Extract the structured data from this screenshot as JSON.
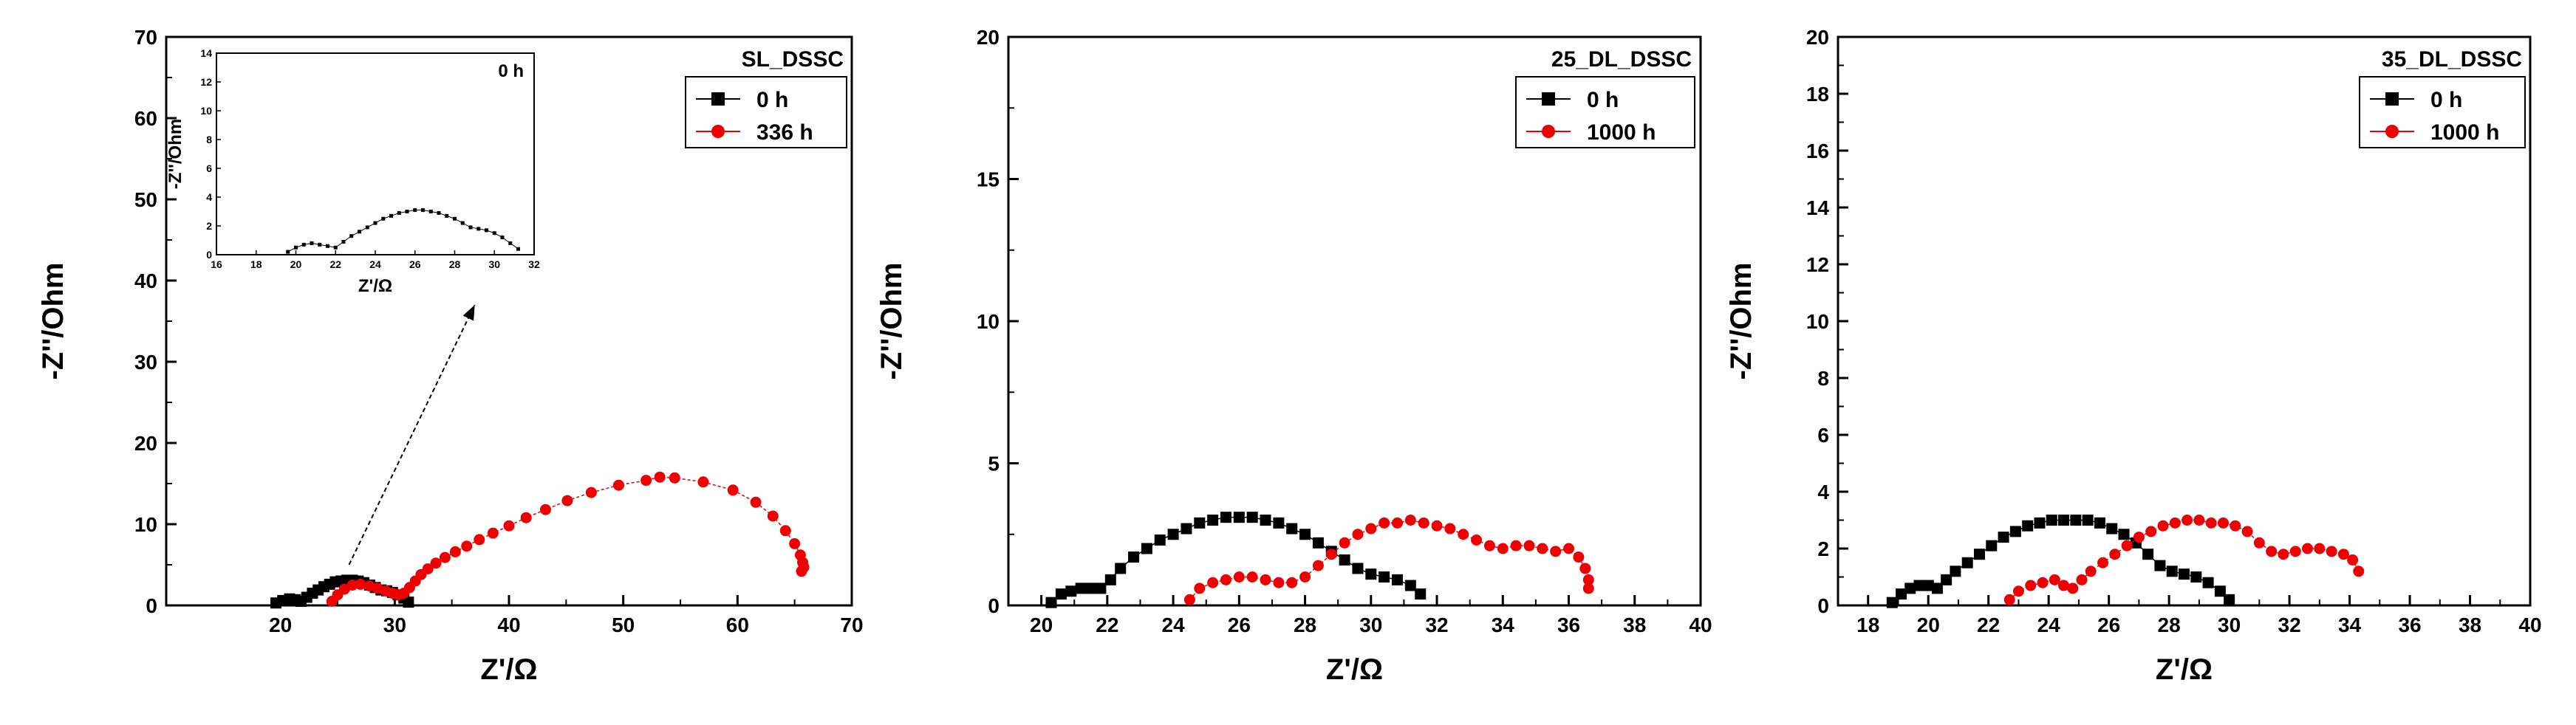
{
  "chart_data": [
    {
      "type": "scatter",
      "title": "SL_DSSC",
      "xlabel": "Z'/Ω",
      "ylabel": "-Z''/Ohm",
      "xlim": [
        10,
        70
      ],
      "ylim": [
        0,
        70
      ],
      "xticks": [
        20,
        30,
        40,
        50,
        60,
        70
      ],
      "yticks": [
        0,
        10,
        20,
        30,
        40,
        50,
        60,
        70
      ],
      "legend_position": "top-right",
      "grid": false,
      "series": [
        {
          "name": "0 h",
          "color": "#000000",
          "marker": "square",
          "x": [
            19.6,
            20.2,
            20.8,
            21.3,
            21.8,
            22.3,
            22.8,
            23.3,
            23.8,
            24.3,
            24.8,
            25.3,
            25.8,
            26.3,
            26.8,
            27.3,
            27.8,
            28.3,
            28.8,
            29.3,
            29.8,
            30.3,
            30.8,
            31.2
          ],
          "y": [
            0.3,
            0.6,
            0.8,
            0.7,
            0.5,
            1.0,
            1.5,
            1.9,
            2.3,
            2.6,
            2.9,
            3.0,
            3.1,
            3.1,
            3.0,
            2.8,
            2.5,
            2.2,
            1.9,
            1.8,
            1.6,
            1.3,
            0.9,
            0.4
          ]
        },
        {
          "name": "336 h",
          "color": "#ee0000",
          "marker": "circle",
          "x": [
            24.5,
            25.0,
            25.6,
            26.3,
            27.0,
            27.8,
            28.5,
            29.2,
            29.8,
            30.3,
            30.8,
            31.3,
            31.8,
            32.3,
            32.9,
            33.6,
            34.4,
            35.3,
            36.3,
            37.4,
            38.6,
            40.0,
            41.5,
            43.2,
            45.1,
            47.2,
            49.6,
            52.0,
            53.2,
            54.5,
            57.0,
            59.6,
            61.6,
            63.1,
            64.2,
            65.0,
            65.5,
            65.7,
            65.8,
            65.6
          ],
          "y": [
            0.5,
            1.3,
            2.0,
            2.5,
            2.6,
            2.4,
            2.1,
            1.8,
            1.5,
            1.3,
            1.5,
            2.2,
            3.0,
            3.8,
            4.5,
            5.2,
            5.9,
            6.6,
            7.3,
            8.1,
            8.9,
            9.8,
            10.8,
            11.8,
            12.9,
            13.9,
            14.8,
            15.4,
            15.8,
            15.7,
            15.2,
            14.2,
            12.7,
            11.0,
            9.2,
            7.6,
            6.2,
            5.3,
            4.7,
            4.2
          ]
        }
      ],
      "annotations": [
        {
          "type": "arrow",
          "from": [
            26,
            5
          ],
          "to": [
            37,
            37
          ]
        }
      ],
      "inset": {
        "title": "0 h",
        "xlabel": "Z'/Ω",
        "ylabel": "-Z''/Ohm",
        "xlim": [
          16,
          32
        ],
        "ylim": [
          0,
          14
        ],
        "xticks": [
          16,
          18,
          20,
          22,
          24,
          26,
          28,
          30,
          32
        ],
        "yticks": [
          0,
          2,
          4,
          6,
          8,
          10,
          12,
          14
        ],
        "series": [
          {
            "name": "0 h",
            "color": "#000000",
            "x": [
              19.6,
              20.0,
              20.4,
              20.8,
              21.2,
              21.6,
              22.0,
              22.4,
              22.8,
              23.2,
              23.6,
              24.0,
              24.4,
              24.8,
              25.2,
              25.6,
              26.0,
              26.4,
              26.8,
              27.2,
              27.6,
              28.0,
              28.4,
              28.8,
              29.2,
              29.6,
              30.0,
              30.4,
              30.8,
              31.2
            ],
            "y": [
              0.2,
              0.5,
              0.7,
              0.8,
              0.7,
              0.6,
              0.5,
              0.9,
              1.3,
              1.6,
              1.9,
              2.2,
              2.5,
              2.7,
              2.9,
              3.0,
              3.1,
              3.1,
              3.0,
              2.9,
              2.7,
              2.5,
              2.2,
              1.9,
              1.8,
              1.7,
              1.5,
              1.2,
              0.8,
              0.4
            ]
          }
        ]
      }
    },
    {
      "type": "scatter",
      "title": "25_DL_DSSC",
      "xlabel": "Z'/Ω",
      "ylabel": "-Z''/Ohm",
      "xlim": [
        19,
        40
      ],
      "ylim": [
        0,
        20
      ],
      "xticks": [
        20,
        22,
        24,
        26,
        28,
        30,
        32,
        34,
        36,
        38,
        40
      ],
      "yticks": [
        0,
        5,
        10,
        15,
        20
      ],
      "legend_position": "top-right",
      "grid": false,
      "series": [
        {
          "name": "0 h",
          "color": "#000000",
          "marker": "square",
          "x": [
            20.3,
            20.6,
            20.9,
            21.2,
            21.5,
            21.8,
            22.1,
            22.4,
            22.8,
            23.2,
            23.6,
            24.0,
            24.4,
            24.8,
            25.2,
            25.6,
            26.0,
            26.4,
            26.8,
            27.2,
            27.6,
            28.0,
            28.4,
            28.8,
            29.2,
            29.6,
            30.0,
            30.4,
            30.8,
            31.2,
            31.5
          ],
          "y": [
            0.1,
            0.4,
            0.5,
            0.6,
            0.6,
            0.6,
            0.9,
            1.3,
            1.7,
            2.0,
            2.3,
            2.5,
            2.7,
            2.9,
            3.0,
            3.1,
            3.1,
            3.1,
            3.0,
            2.9,
            2.7,
            2.5,
            2.2,
            1.9,
            1.6,
            1.3,
            1.1,
            1.0,
            0.9,
            0.7,
            0.4
          ]
        },
        {
          "name": "1000 h",
          "color": "#ee0000",
          "marker": "circle",
          "x": [
            24.5,
            24.8,
            25.2,
            25.6,
            26.0,
            26.4,
            26.8,
            27.2,
            27.6,
            28.0,
            28.4,
            28.8,
            29.2,
            29.6,
            30.0,
            30.4,
            30.8,
            31.2,
            31.6,
            32.0,
            32.4,
            32.8,
            33.2,
            33.6,
            34.0,
            34.4,
            34.8,
            35.2,
            35.6,
            36.0,
            36.3,
            36.5,
            36.6,
            36.6
          ],
          "y": [
            0.2,
            0.6,
            0.8,
            0.9,
            1.0,
            1.0,
            0.9,
            0.8,
            0.8,
            1.0,
            1.4,
            1.8,
            2.2,
            2.5,
            2.7,
            2.9,
            2.9,
            3.0,
            2.9,
            2.8,
            2.7,
            2.5,
            2.3,
            2.1,
            2.0,
            2.1,
            2.1,
            2.0,
            1.9,
            2.0,
            1.7,
            1.3,
            0.9,
            0.6
          ]
        }
      ]
    },
    {
      "type": "scatter",
      "title": "35_DL_DSSC",
      "xlabel": "Z'/Ω",
      "ylabel": "-Z''/Ohm",
      "xlim": [
        17,
        40
      ],
      "ylim": [
        0,
        20
      ],
      "xticks": [
        18,
        20,
        22,
        24,
        26,
        28,
        30,
        32,
        34,
        36,
        38,
        40
      ],
      "yticks": [
        0,
        2,
        4,
        6,
        8,
        10,
        12,
        14,
        16,
        18,
        20
      ],
      "legend_position": "top-right",
      "grid": false,
      "series": [
        {
          "name": "0 h",
          "color": "#000000",
          "marker": "square",
          "x": [
            18.8,
            19.1,
            19.4,
            19.7,
            20.0,
            20.3,
            20.6,
            20.9,
            21.3,
            21.7,
            22.1,
            22.5,
            22.9,
            23.3,
            23.7,
            24.1,
            24.5,
            24.9,
            25.3,
            25.7,
            26.1,
            26.5,
            26.9,
            27.3,
            27.7,
            28.1,
            28.5,
            28.9,
            29.3,
            29.7,
            30.0
          ],
          "y": [
            0.1,
            0.4,
            0.6,
            0.7,
            0.7,
            0.6,
            0.9,
            1.2,
            1.5,
            1.8,
            2.1,
            2.4,
            2.6,
            2.8,
            2.9,
            3.0,
            3.0,
            3.0,
            3.0,
            2.9,
            2.7,
            2.5,
            2.2,
            1.8,
            1.4,
            1.2,
            1.1,
            1.0,
            0.8,
            0.5,
            0.2
          ]
        },
        {
          "name": "1000 h",
          "color": "#ee0000",
          "marker": "circle",
          "x": [
            22.7,
            23.0,
            23.4,
            23.8,
            24.2,
            24.5,
            24.8,
            25.1,
            25.4,
            25.8,
            26.2,
            26.6,
            27.0,
            27.4,
            27.8,
            28.2,
            28.6,
            29.0,
            29.4,
            29.8,
            30.2,
            30.6,
            31.0,
            31.4,
            31.8,
            32.2,
            32.6,
            33.0,
            33.4,
            33.8,
            34.1,
            34.3
          ],
          "y": [
            0.2,
            0.5,
            0.7,
            0.8,
            0.9,
            0.7,
            0.6,
            0.9,
            1.2,
            1.5,
            1.8,
            2.1,
            2.4,
            2.6,
            2.8,
            2.9,
            3.0,
            3.0,
            2.9,
            2.9,
            2.8,
            2.6,
            2.2,
            1.9,
            1.8,
            1.9,
            2.0,
            2.0,
            1.9,
            1.8,
            1.6,
            1.2
          ]
        }
      ]
    }
  ]
}
